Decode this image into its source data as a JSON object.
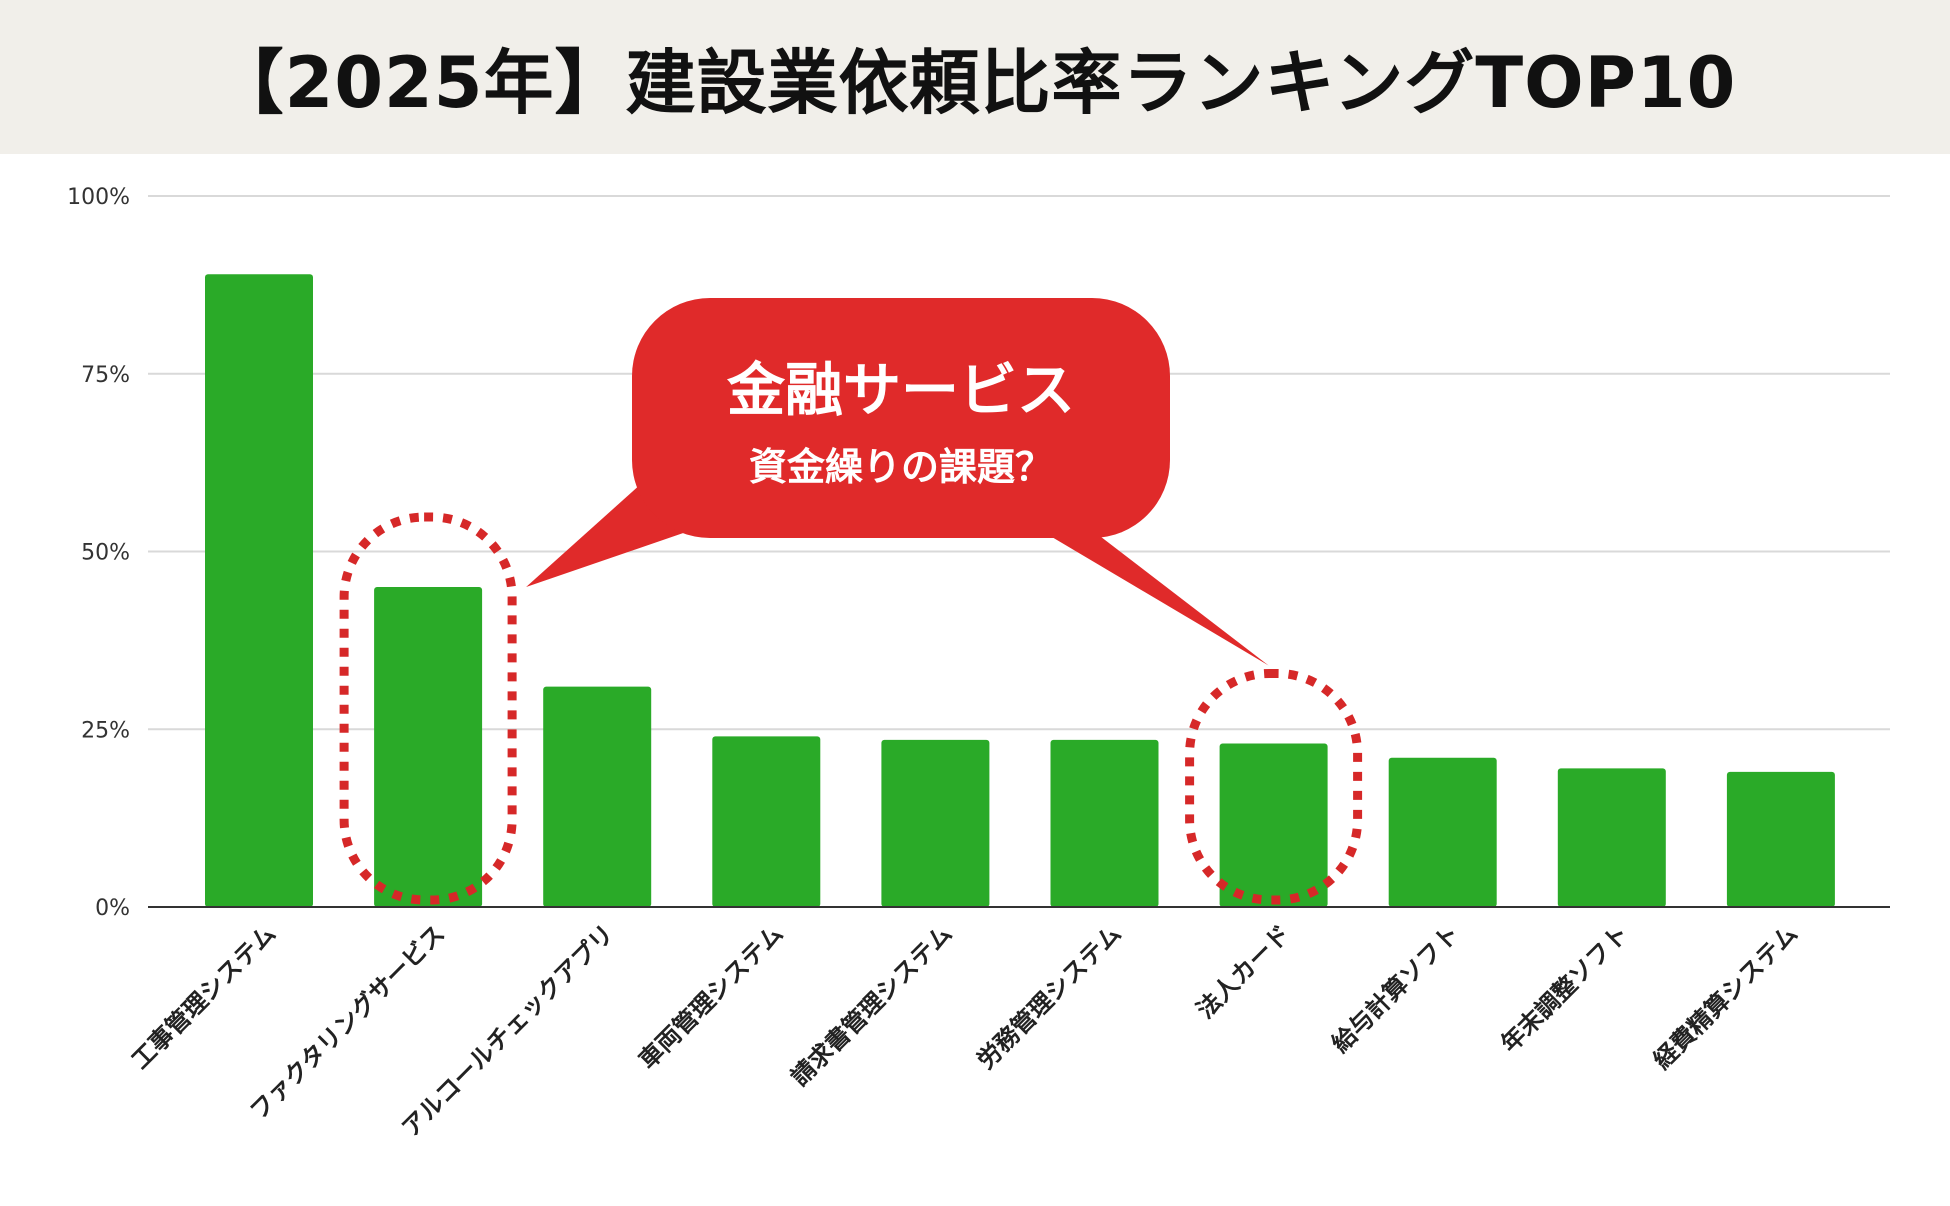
{
  "header": {
    "title": "【2025年】建設業依頼比率ランキングTOP10"
  },
  "colors": {
    "bar": "#2aaa28",
    "callout": "#e02a2a",
    "highlight_ring": "#d62828",
    "grid": "#d9d9d9",
    "axis": "#333333",
    "title_bg": "#f1efea"
  },
  "callout": {
    "title": "金融サービス",
    "subtitle": "資金繰りの課題？",
    "highlighted_categories": [
      "ファクタリングサービス",
      "法人カード"
    ]
  },
  "chart_data": {
    "type": "bar",
    "title": "",
    "xlabel": "",
    "ylabel": "",
    "categories": [
      "工事管理システム",
      "ファクタリングサービス",
      "アルコールチェックアプリ",
      "車両管理システム",
      "請求書管理システム",
      "労務管理システム",
      "法人カード",
      "給与計算ソフト",
      "年末調整ソフト",
      "経費精算システム"
    ],
    "values": [
      89,
      45,
      31,
      24,
      23.5,
      23.5,
      23,
      21,
      19.5,
      19
    ],
    "ylim": [
      0,
      100
    ],
    "yticks": [
      0,
      25,
      50,
      75,
      100
    ],
    "ytick_labels": [
      "0%",
      "25%",
      "50%",
      "75%",
      "100%"
    ],
    "grid": true,
    "legend": "none"
  }
}
